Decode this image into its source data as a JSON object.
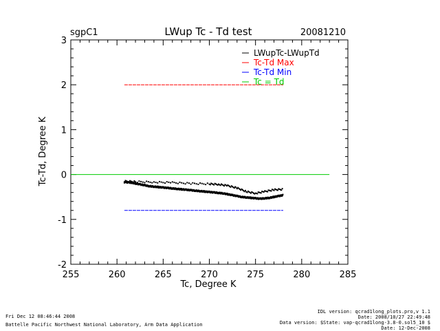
{
  "header": {
    "site": "sgpC1",
    "date": "20081210"
  },
  "chart_data": {
    "type": "scatter",
    "title": "LWup Tc - Td test",
    "xlabel": "Tc, Degree K",
    "ylabel": "Tc-Td, Degree K",
    "xlim": [
      255,
      285
    ],
    "ylim": [
      -2,
      3
    ],
    "xticks": [
      255,
      260,
      265,
      270,
      275,
      280,
      285
    ],
    "yticks": [
      -2,
      -1,
      0,
      1,
      2,
      3
    ],
    "legend_position": "top-right",
    "series": [
      {
        "name": "LWupTc-LWupTd",
        "color": "#000000",
        "style": "points",
        "x": [
          260.8,
          261.5,
          262.0,
          262.5,
          263.0,
          263.5,
          264.0,
          264.5,
          265.0,
          265.5,
          266.0,
          266.5,
          267.0,
          267.5,
          268.0,
          268.5,
          269.0,
          269.5,
          270.0,
          270.5,
          271.0,
          271.5,
          272.0,
          272.5,
          273.0,
          273.5,
          274.0,
          274.5,
          275.0,
          275.5,
          276.0,
          276.5,
          277.0,
          277.5,
          278.0
        ],
        "y": [
          -0.17,
          -0.18,
          -0.2,
          -0.22,
          -0.24,
          -0.26,
          -0.27,
          -0.28,
          -0.29,
          -0.3,
          -0.31,
          -0.32,
          -0.33,
          -0.34,
          -0.35,
          -0.36,
          -0.37,
          -0.38,
          -0.39,
          -0.4,
          -0.41,
          -0.42,
          -0.44,
          -0.46,
          -0.48,
          -0.5,
          -0.51,
          -0.52,
          -0.53,
          -0.54,
          -0.53,
          -0.52,
          -0.5,
          -0.48,
          -0.46
        ],
        "upper_band_x": [
          260.8,
          262,
          264,
          266,
          268,
          270,
          271,
          272,
          273,
          274,
          275,
          276,
          277,
          278
        ],
        "upper_band_y": [
          -0.15,
          -0.16,
          -0.17,
          -0.18,
          -0.2,
          -0.21,
          -0.22,
          -0.25,
          -0.3,
          -0.38,
          -0.42,
          -0.38,
          -0.34,
          -0.33
        ]
      },
      {
        "name": "Tc-Td Max",
        "color": "#ff0000",
        "style": "dashed",
        "x": [
          260.8,
          278.0
        ],
        "y": [
          2.0,
          2.0
        ]
      },
      {
        "name": "Tc-Td Min",
        "color": "#0000ff",
        "style": "dashed",
        "x": [
          260.8,
          278.0
        ],
        "y": [
          -0.8,
          -0.8
        ]
      },
      {
        "name": "Tc = Td",
        "color": "#00cc00",
        "style": "solid",
        "x": [
          255,
          283
        ],
        "y": [
          0,
          0
        ]
      }
    ]
  },
  "footer": {
    "left_line1": "Fri Dec 12 08:46:44 2008",
    "left_line2": "Battelle Pacific Northwest National Laboratory, Arm Data Application",
    "right_line1": "IDL version: qcrad1long_plots.pro,v 1.1",
    "right_line2": "Date: 2008/10/27 22:49:48",
    "right_line3": "Data version: $State: vap-qcrad1long-3.8-0.sol5_10 $",
    "right_line4": "Date: 12-Dec-2008"
  }
}
